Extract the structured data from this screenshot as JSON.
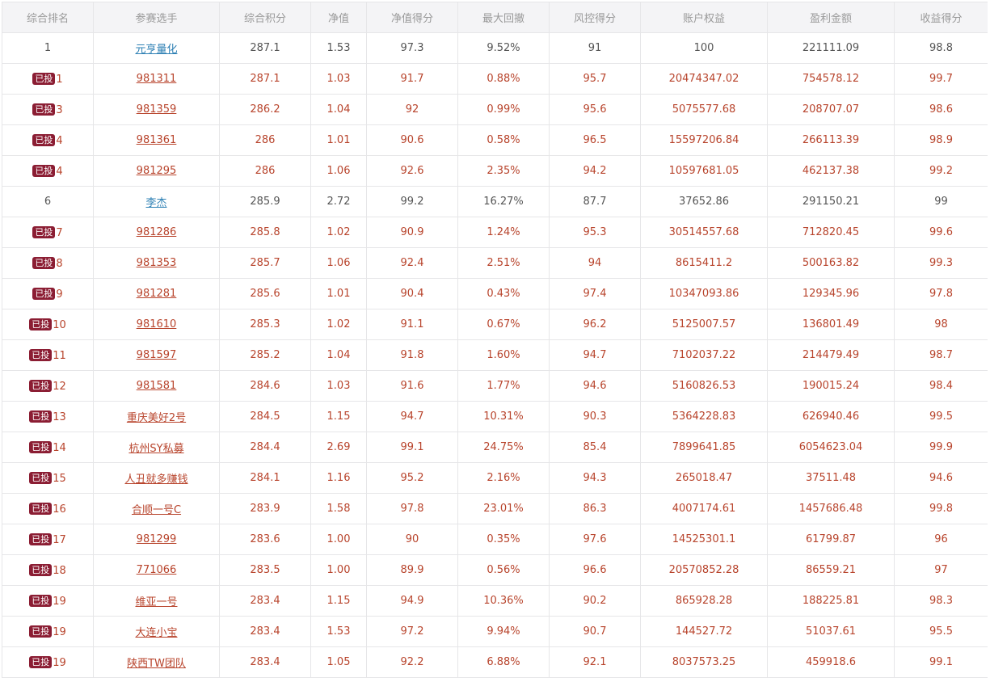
{
  "columns": [
    "综合排名",
    "参赛选手",
    "综合积分",
    "净值",
    "净值得分",
    "最大回撤",
    "风控得分",
    "账户权益",
    "盈利金额",
    "收益得分"
  ],
  "badge_text": "已投",
  "colors": {
    "header_bg": "#f4f4f6",
    "header_text": "#999999",
    "normal_text": "#555555",
    "invested_text": "#b8442c",
    "link_blue": "#2e80b4",
    "badge_bg": "#8b1d33",
    "border": "#e6e6e8"
  },
  "rows": [
    {
      "rank": "1",
      "invested": false,
      "player": "元亨量化",
      "score": "287.1",
      "nav": "1.53",
      "nav_score": "97.3",
      "max_drawdown": "9.52%",
      "risk_score": "91",
      "equity": "100",
      "profit": "221111.09",
      "return_score": "98.8"
    },
    {
      "rank": "1",
      "invested": true,
      "player": "981311",
      "score": "287.1",
      "nav": "1.03",
      "nav_score": "91.7",
      "max_drawdown": "0.88%",
      "risk_score": "95.7",
      "equity": "20474347.02",
      "profit": "754578.12",
      "return_score": "99.7"
    },
    {
      "rank": "3",
      "invested": true,
      "player": "981359",
      "score": "286.2",
      "nav": "1.04",
      "nav_score": "92",
      "max_drawdown": "0.99%",
      "risk_score": "95.6",
      "equity": "5075577.68",
      "profit": "208707.07",
      "return_score": "98.6"
    },
    {
      "rank": "4",
      "invested": true,
      "player": "981361",
      "score": "286",
      "nav": "1.01",
      "nav_score": "90.6",
      "max_drawdown": "0.58%",
      "risk_score": "96.5",
      "equity": "15597206.84",
      "profit": "266113.39",
      "return_score": "98.9"
    },
    {
      "rank": "4",
      "invested": true,
      "player": "981295",
      "score": "286",
      "nav": "1.06",
      "nav_score": "92.6",
      "max_drawdown": "2.35%",
      "risk_score": "94.2",
      "equity": "10597681.05",
      "profit": "462137.38",
      "return_score": "99.2"
    },
    {
      "rank": "6",
      "invested": false,
      "player": "李杰",
      "score": "285.9",
      "nav": "2.72",
      "nav_score": "99.2",
      "max_drawdown": "16.27%",
      "risk_score": "87.7",
      "equity": "37652.86",
      "profit": "291150.21",
      "return_score": "99"
    },
    {
      "rank": "7",
      "invested": true,
      "player": "981286",
      "score": "285.8",
      "nav": "1.02",
      "nav_score": "90.9",
      "max_drawdown": "1.24%",
      "risk_score": "95.3",
      "equity": "30514557.68",
      "profit": "712820.45",
      "return_score": "99.6"
    },
    {
      "rank": "8",
      "invested": true,
      "player": "981353",
      "score": "285.7",
      "nav": "1.06",
      "nav_score": "92.4",
      "max_drawdown": "2.51%",
      "risk_score": "94",
      "equity": "8615411.2",
      "profit": "500163.82",
      "return_score": "99.3"
    },
    {
      "rank": "9",
      "invested": true,
      "player": "981281",
      "score": "285.6",
      "nav": "1.01",
      "nav_score": "90.4",
      "max_drawdown": "0.43%",
      "risk_score": "97.4",
      "equity": "10347093.86",
      "profit": "129345.96",
      "return_score": "97.8"
    },
    {
      "rank": "10",
      "invested": true,
      "player": "981610",
      "score": "285.3",
      "nav": "1.02",
      "nav_score": "91.1",
      "max_drawdown": "0.67%",
      "risk_score": "96.2",
      "equity": "5125007.57",
      "profit": "136801.49",
      "return_score": "98"
    },
    {
      "rank": "11",
      "invested": true,
      "player": "981597",
      "score": "285.2",
      "nav": "1.04",
      "nav_score": "91.8",
      "max_drawdown": "1.60%",
      "risk_score": "94.7",
      "equity": "7102037.22",
      "profit": "214479.49",
      "return_score": "98.7"
    },
    {
      "rank": "12",
      "invested": true,
      "player": "981581",
      "score": "284.6",
      "nav": "1.03",
      "nav_score": "91.6",
      "max_drawdown": "1.77%",
      "risk_score": "94.6",
      "equity": "5160826.53",
      "profit": "190015.24",
      "return_score": "98.4"
    },
    {
      "rank": "13",
      "invested": true,
      "player": "重庆美好2号",
      "score": "284.5",
      "nav": "1.15",
      "nav_score": "94.7",
      "max_drawdown": "10.31%",
      "risk_score": "90.3",
      "equity": "5364228.83",
      "profit": "626940.46",
      "return_score": "99.5"
    },
    {
      "rank": "14",
      "invested": true,
      "player": "杭州SY私募",
      "score": "284.4",
      "nav": "2.69",
      "nav_score": "99.1",
      "max_drawdown": "24.75%",
      "risk_score": "85.4",
      "equity": "7899641.85",
      "profit": "6054623.04",
      "return_score": "99.9"
    },
    {
      "rank": "15",
      "invested": true,
      "player": "人丑就多赚钱",
      "score": "284.1",
      "nav": "1.16",
      "nav_score": "95.2",
      "max_drawdown": "2.16%",
      "risk_score": "94.3",
      "equity": "265018.47",
      "profit": "37511.48",
      "return_score": "94.6"
    },
    {
      "rank": "16",
      "invested": true,
      "player": "合顺一号C",
      "score": "283.9",
      "nav": "1.58",
      "nav_score": "97.8",
      "max_drawdown": "23.01%",
      "risk_score": "86.3",
      "equity": "4007174.61",
      "profit": "1457686.48",
      "return_score": "99.8"
    },
    {
      "rank": "17",
      "invested": true,
      "player": "981299",
      "score": "283.6",
      "nav": "1.00",
      "nav_score": "90",
      "max_drawdown": "0.35%",
      "risk_score": "97.6",
      "equity": "14525301.1",
      "profit": "61799.87",
      "return_score": "96"
    },
    {
      "rank": "18",
      "invested": true,
      "player": "771066",
      "score": "283.5",
      "nav": "1.00",
      "nav_score": "89.9",
      "max_drawdown": "0.56%",
      "risk_score": "96.6",
      "equity": "20570852.28",
      "profit": "86559.21",
      "return_score": "97"
    },
    {
      "rank": "19",
      "invested": true,
      "player": "维亚一号",
      "score": "283.4",
      "nav": "1.15",
      "nav_score": "94.9",
      "max_drawdown": "10.36%",
      "risk_score": "90.2",
      "equity": "865928.28",
      "profit": "188225.81",
      "return_score": "98.3"
    },
    {
      "rank": "19",
      "invested": true,
      "player": "大连小宝",
      "score": "283.4",
      "nav": "1.53",
      "nav_score": "97.2",
      "max_drawdown": "9.94%",
      "risk_score": "90.7",
      "equity": "144527.72",
      "profit": "51037.61",
      "return_score": "95.5"
    },
    {
      "rank": "19",
      "invested": true,
      "player": "陕西TW团队",
      "score": "283.4",
      "nav": "1.05",
      "nav_score": "92.2",
      "max_drawdown": "6.88%",
      "risk_score": "92.1",
      "equity": "8037573.25",
      "profit": "459918.6",
      "return_score": "99.1"
    }
  ]
}
